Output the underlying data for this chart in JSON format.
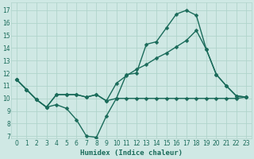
{
  "xlabel": "Humidex (Indice chaleur)",
  "background_color": "#cfe8e4",
  "grid_color": "#b0d4cc",
  "line_color": "#1a6b5a",
  "xlim": [
    -0.5,
    23.5
  ],
  "ylim": [
    6.8,
    17.6
  ],
  "xticks": [
    0,
    1,
    2,
    3,
    4,
    5,
    6,
    7,
    8,
    9,
    10,
    11,
    12,
    13,
    14,
    15,
    16,
    17,
    18,
    19,
    20,
    21,
    22,
    23
  ],
  "yticks": [
    7,
    8,
    9,
    10,
    11,
    12,
    13,
    14,
    15,
    16,
    17
  ],
  "line1_x": [
    0,
    1,
    2,
    3,
    4,
    5,
    6,
    7,
    8,
    9,
    10,
    11,
    12,
    13,
    14,
    15,
    16,
    17,
    18,
    19,
    20,
    21,
    22,
    23
  ],
  "line1_y": [
    11.5,
    10.7,
    9.9,
    9.3,
    10.3,
    10.3,
    10.3,
    10.1,
    10.3,
    9.8,
    10.0,
    10.0,
    10.0,
    10.0,
    10.0,
    10.0,
    10.0,
    10.0,
    10.0,
    10.0,
    10.0,
    10.0,
    10.0,
    10.1
  ],
  "line2_x": [
    0,
    1,
    2,
    3,
    4,
    5,
    6,
    7,
    8,
    9,
    10,
    11,
    12,
    13,
    14,
    15,
    16,
    17,
    18,
    19,
    20,
    21,
    22,
    23
  ],
  "line2_y": [
    11.5,
    10.7,
    9.9,
    9.3,
    9.5,
    9.2,
    8.3,
    7.0,
    6.9,
    8.6,
    10.0,
    11.9,
    12.0,
    14.3,
    14.5,
    15.6,
    16.7,
    17.0,
    16.6,
    13.9,
    11.9,
    11.0,
    10.2,
    10.1
  ],
  "line3_x": [
    0,
    1,
    2,
    3,
    4,
    5,
    6,
    7,
    8,
    9,
    10,
    11,
    12,
    13,
    14,
    15,
    16,
    17,
    18,
    19,
    20,
    21,
    22,
    23
  ],
  "line3_y": [
    11.5,
    10.7,
    9.9,
    9.3,
    10.3,
    10.3,
    10.3,
    10.1,
    10.3,
    9.8,
    11.2,
    11.8,
    12.3,
    12.7,
    13.2,
    13.6,
    14.1,
    14.6,
    15.4,
    13.9,
    11.9,
    11.0,
    10.2,
    10.1
  ],
  "marker_size": 2.5,
  "line_width": 1.0
}
